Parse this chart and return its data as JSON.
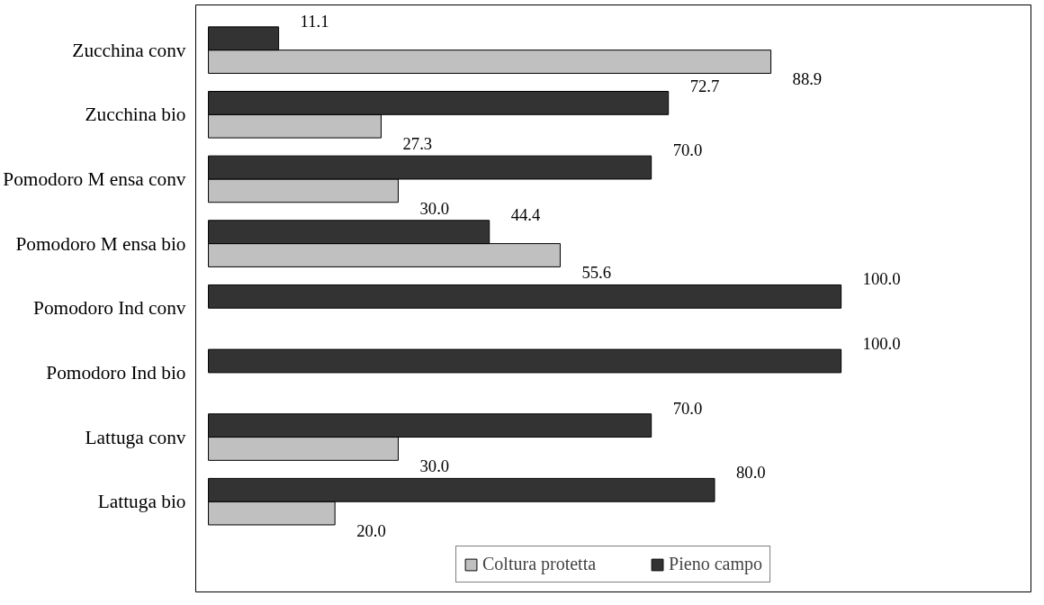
{
  "chart_data": {
    "type": "bar",
    "orientation": "horizontal",
    "categories": [
      "Zucchina conv",
      "Zucchina bio",
      "Pomodoro M ensa conv",
      "Pomodoro M ensa bio",
      "Pomodoro Ind conv",
      "Pomodoro Ind bio",
      "Lattuga conv",
      "Lattuga bio"
    ],
    "series": [
      {
        "name": "Coltura protetta",
        "color": "#c0c0c0",
        "values": [
          88.9,
          27.3,
          30.0,
          55.6,
          null,
          null,
          30.0,
          20.0
        ],
        "value_labels": [
          "88.9",
          "27.3",
          "30.0",
          "55.6",
          null,
          null,
          "30.0",
          "20.0"
        ]
      },
      {
        "name": "Pieno campo",
        "color": "#333333",
        "values": [
          11.1,
          72.7,
          70.0,
          44.4,
          100.0,
          100.0,
          70.0,
          80.0
        ],
        "value_labels": [
          "11.1",
          "72.7",
          "70.0",
          "44.4",
          "100.0",
          "100.0",
          "70.0",
          "80.0"
        ]
      }
    ],
    "legend": "bottom",
    "grid": false
  }
}
